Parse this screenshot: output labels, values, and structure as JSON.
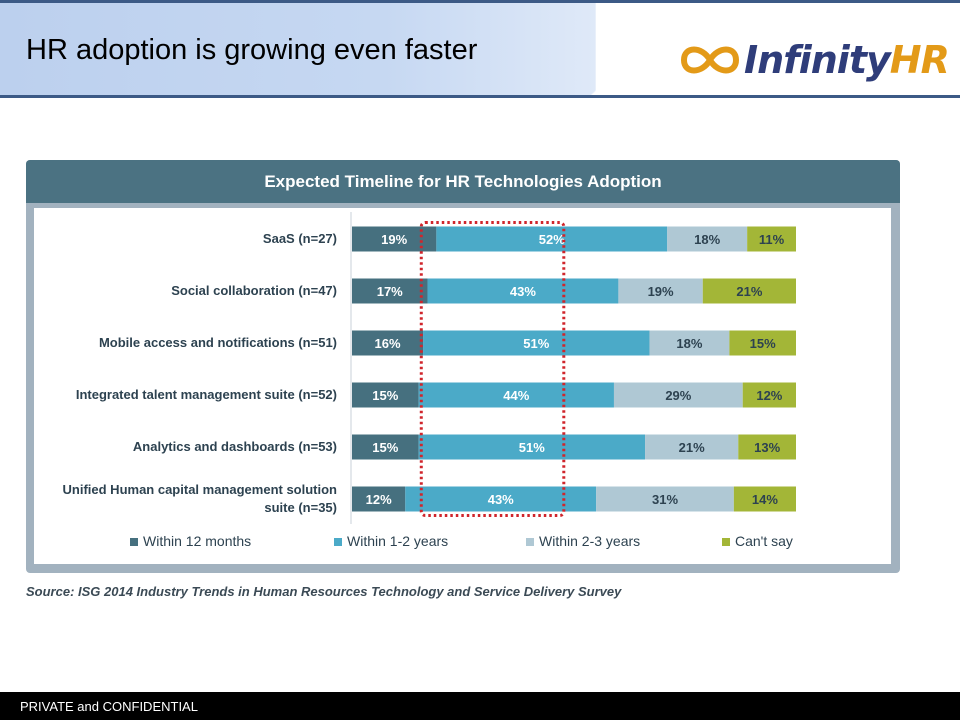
{
  "slide": {
    "title": "HR adoption is growing even faster",
    "source": "Source: ISG 2014 Industry Trends in Human Resources Technology and Service Delivery Survey",
    "footer": "PRIVATE and CONFIDENTIAL"
  },
  "logo": {
    "word1": "Infinity",
    "word2": "HR",
    "icon": "infinity-icon",
    "colors": {
      "text": "#2f3d7a",
      "accent": "#e39a18"
    }
  },
  "chart_data": {
    "type": "bar",
    "orientation": "horizontal",
    "stacked": true,
    "percent_scale": true,
    "title": "Expected Timeline for HR Technologies Adoption",
    "categories": [
      [
        "SaaS (n=27)"
      ],
      [
        "Social collaboration (n=47)"
      ],
      [
        "Mobile access and notifications (n=51)"
      ],
      [
        "Integrated talent management suite (n=52)"
      ],
      [
        "Analytics and dashboards (n=53)"
      ],
      [
        "Unified Human capital management  solution",
        "suite (n=35)"
      ]
    ],
    "series": [
      {
        "name": "Within 12 months",
        "color": "#46707f",
        "label_color": "#ffffff",
        "values": [
          19,
          17,
          16,
          15,
          15,
          12
        ]
      },
      {
        "name": "Within 1-2 years",
        "color": "#4baac8",
        "label_color": "#ffffff",
        "values": [
          52,
          43,
          51,
          44,
          51,
          43
        ]
      },
      {
        "name": "Within 2-3 years",
        "color": "#afc8d4",
        "label_color": "#2d4250",
        "values": [
          18,
          19,
          18,
          29,
          21,
          31
        ]
      },
      {
        "name": "Can't say",
        "color": "#a3b637",
        "label_color": "#2d4250",
        "values": [
          11,
          21,
          15,
          12,
          13,
          14
        ]
      }
    ],
    "value_suffix": "%",
    "legend_position": "bottom",
    "grid": false,
    "highlight": {
      "series": "Within 1-2 years",
      "style": "dotted",
      "color": "#d0252b"
    }
  }
}
